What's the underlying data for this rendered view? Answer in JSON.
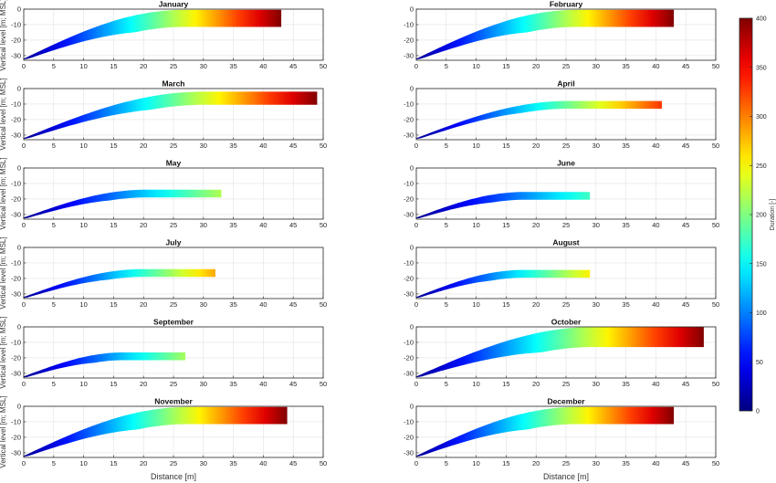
{
  "chart_data": {
    "type": "area",
    "xlabel": "Distance [m]",
    "ylabel": "Vertical level [m; MSL]",
    "xlim": [
      0,
      50
    ],
    "ylim": [
      -33,
      0
    ],
    "xticks": [
      0,
      5,
      10,
      15,
      20,
      25,
      30,
      35,
      40,
      45,
      50
    ],
    "yticks": [
      0,
      -10,
      -20,
      -30
    ],
    "grid": true,
    "colorbar": {
      "label": "Duration [-]",
      "min": 0,
      "max": 400,
      "ticks": [
        0,
        50,
        100,
        150,
        200,
        250,
        300,
        350,
        400
      ],
      "colormap": "jet",
      "placement": "right"
    },
    "panels": [
      {
        "month": "January",
        "length": 43,
        "top_end": -0.5,
        "thickness": 11,
        "max_duration": 400
      },
      {
        "month": "February",
        "length": 43,
        "top_end": -0.5,
        "thickness": 11,
        "max_duration": 400
      },
      {
        "month": "March",
        "length": 49,
        "top_end": -2,
        "thickness": 8.5,
        "max_duration": 400
      },
      {
        "month": "April",
        "length": 41,
        "top_end": -8,
        "thickness": 5,
        "max_duration": 330
      },
      {
        "month": "May",
        "length": 33,
        "top_end": -14,
        "thickness": 5,
        "max_duration": 220
      },
      {
        "month": "June",
        "length": 29,
        "top_end": -15.5,
        "thickness": 5,
        "max_duration": 175
      },
      {
        "month": "July",
        "length": 32,
        "top_end": -14,
        "thickness": 5,
        "max_duration": 285
      },
      {
        "month": "August",
        "length": 29,
        "top_end": -14.5,
        "thickness": 5,
        "max_duration": 255
      },
      {
        "month": "September",
        "length": 27,
        "top_end": -16.5,
        "thickness": 5,
        "max_duration": 215
      },
      {
        "month": "October",
        "length": 48,
        "top_end": 0,
        "thickness": 13,
        "max_duration": 400
      },
      {
        "month": "November",
        "length": 44,
        "top_end": -0.5,
        "thickness": 11,
        "max_duration": 400
      },
      {
        "month": "December",
        "length": 43,
        "top_end": -0.5,
        "thickness": 11,
        "max_duration": 400
      }
    ]
  }
}
